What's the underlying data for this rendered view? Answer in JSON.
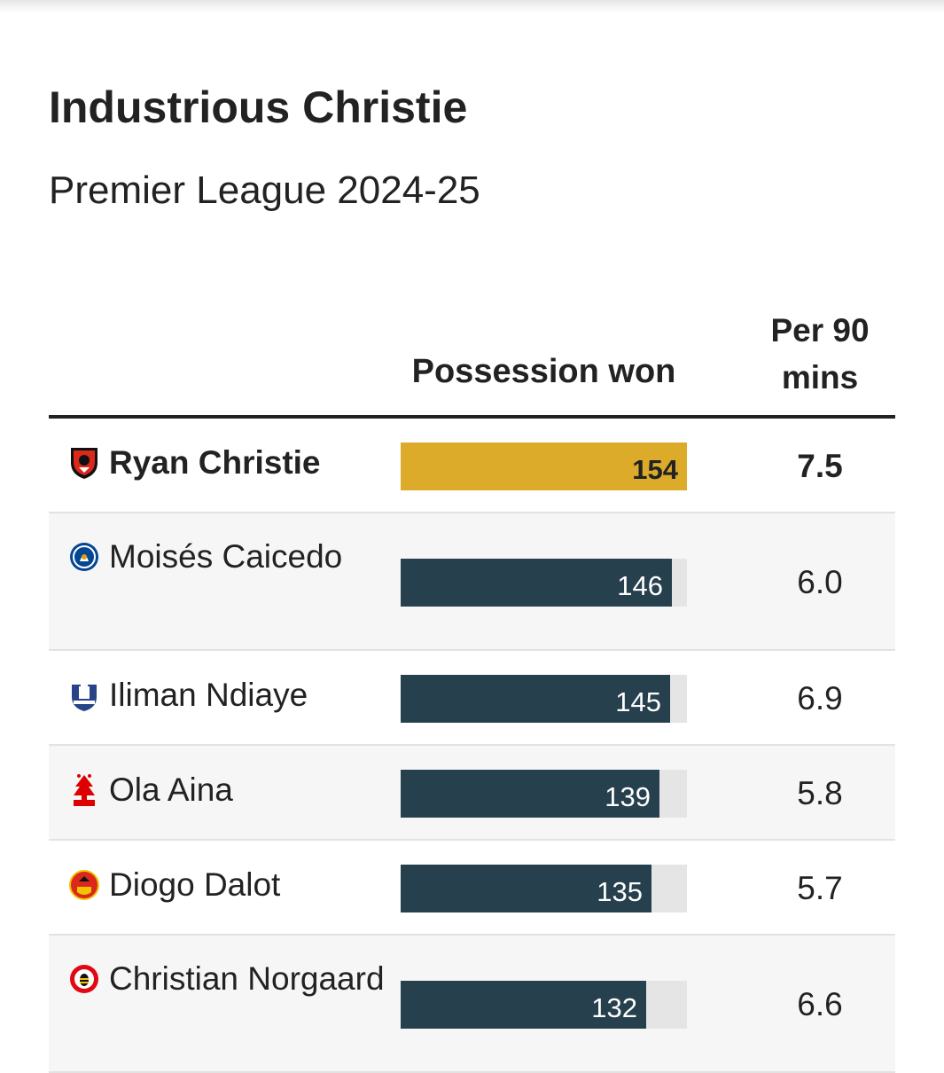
{
  "chart_data": {
    "type": "table",
    "title": "Industrious Christie",
    "subtitle": "Premier League 2024-25",
    "columns": [
      "",
      "Possession won",
      "Per 90 mins"
    ],
    "bar_max": 154,
    "rows": [
      {
        "player": "Ryan Christie",
        "club_crest": "bournemouth-crest-icon",
        "possession_won": 154,
        "per_90": "7.5",
        "highlight": true
      },
      {
        "player": "Moisés Caicedo",
        "club_crest": "chelsea-crest-icon",
        "possession_won": 146,
        "per_90": "6.0",
        "highlight": false
      },
      {
        "player": "Iliman Ndiaye",
        "club_crest": "everton-crest-icon",
        "possession_won": 145,
        "per_90": "6.9",
        "highlight": false
      },
      {
        "player": "Ola Aina",
        "club_crest": "nottingham-forest-crest-icon",
        "possession_won": 139,
        "per_90": "5.8",
        "highlight": false
      },
      {
        "player": "Diogo Dalot",
        "club_crest": "manchester-united-crest-icon",
        "possession_won": 135,
        "per_90": "5.7",
        "highlight": false
      },
      {
        "player": "Christian Norgaard",
        "club_crest": "brentford-crest-icon",
        "possession_won": 132,
        "per_90": "6.6",
        "highlight": false
      }
    ]
  },
  "colors": {
    "highlight_bar": "#dcab2a",
    "bar": "#26404e",
    "bar_track": "#e5e5e5",
    "text": "#222222"
  }
}
